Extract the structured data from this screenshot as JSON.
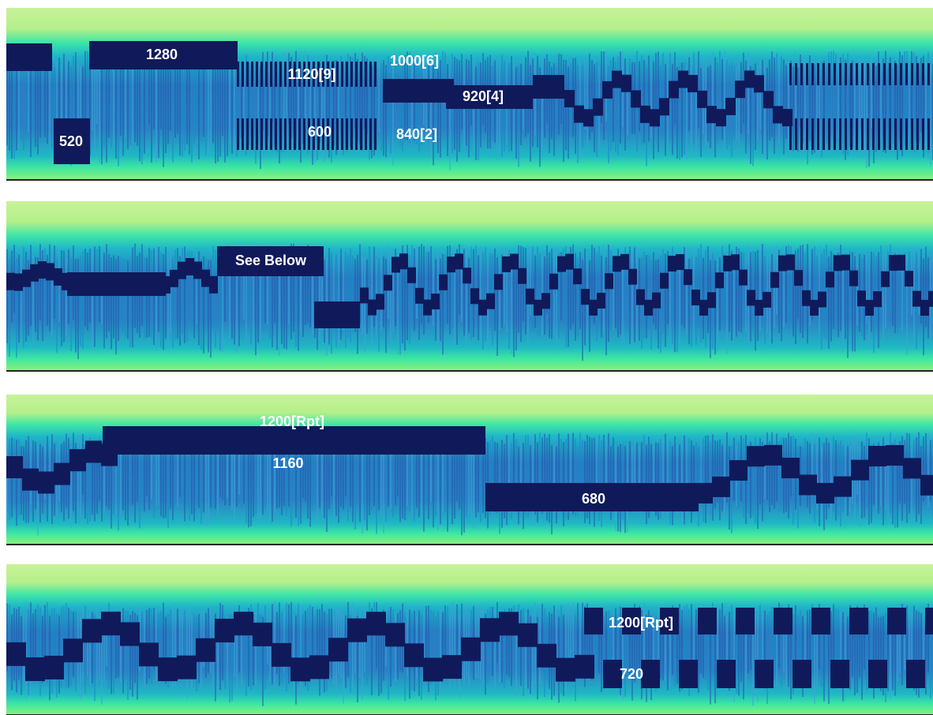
{
  "panels": [
    {
      "labels": [
        "1280",
        "520",
        "1120[9]",
        "600",
        "1000[6]",
        "920[4]",
        "840[2]"
      ]
    },
    {
      "labels": [
        "See Below"
      ]
    },
    {
      "labels": [
        "1200[Rpt]",
        "1160",
        "680"
      ]
    },
    {
      "labels": [
        "1200[Rpt]",
        "720"
      ]
    }
  ]
}
